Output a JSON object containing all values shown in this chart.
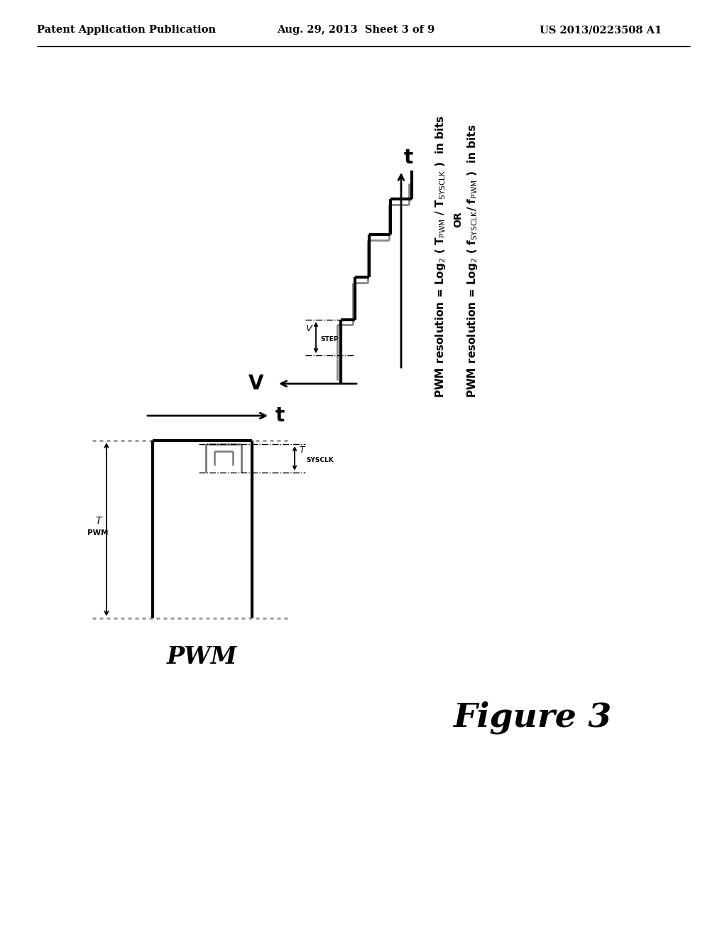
{
  "bg_color": "#ffffff",
  "header_left": "Patent Application Publication",
  "header_center": "Aug. 29, 2013  Sheet 3 of 9",
  "header_right": "US 2013/0223508 A1"
}
